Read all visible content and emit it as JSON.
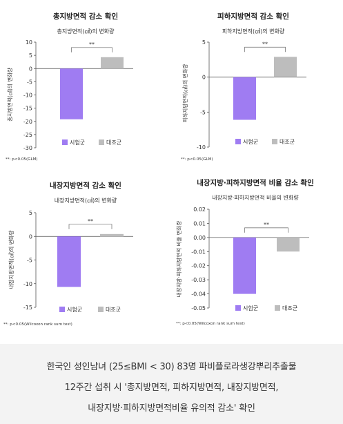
{
  "colors": {
    "test": "#9f7cf2",
    "control": "#bdbdbd",
    "axis": "#555555"
  },
  "chart_data": [
    {
      "type": "bar",
      "title": "총지방면적 감소 확인",
      "subtitle": "총지방면적(㎠)의 변화량",
      "ylabel": "총지방면적(㎠)의 변화량",
      "categories": [
        "시험군",
        "대조군"
      ],
      "values": [
        -19.2,
        4.3
      ],
      "ylim": [
        -30,
        10
      ],
      "yticks": [
        10,
        5,
        0,
        -5,
        -10,
        -15,
        -20,
        -25,
        -30
      ],
      "significance": "**",
      "note": "**: p<0.05(GLM)",
      "legend": [
        "시험군",
        "대조군"
      ]
    },
    {
      "type": "bar",
      "title": "피하지방면적 감소 확인",
      "subtitle": "피하지방면적(㎠)의 변화량",
      "ylabel": "피하지방면적(㎠)의 변화량",
      "categories": [
        "시험군",
        "대조군"
      ],
      "values": [
        -6.1,
        2.9
      ],
      "ylim": [
        -10,
        5
      ],
      "yticks": [
        5,
        0,
        -5,
        -10
      ],
      "significance": "**",
      "note": "**: p<0.05(GLM)",
      "legend": [
        "시험군",
        "대조군"
      ]
    },
    {
      "type": "bar",
      "title": "내장지방면적 감소 확인",
      "subtitle": "내장지방면적(㎠)의 변화량",
      "ylabel": "내장지방면적(㎠)의 변화량",
      "categories": [
        "시험군",
        "대조군"
      ],
      "values": [
        -10.7,
        0.5
      ],
      "ylim": [
        -15,
        5
      ],
      "yticks": [
        5,
        0,
        -5,
        -10,
        -15
      ],
      "significance": "**",
      "note": "**: p<0.05(Wilcoxon rank sum test)",
      "legend": [
        "시험군",
        "대조군"
      ]
    },
    {
      "type": "bar",
      "title": "내장지방·피하지방면적 비율 감소 확인",
      "subtitle": "내장지방·피하지방면적 비율의 변화량",
      "ylabel": "내장지방·피하지방면적 비율 변화량",
      "categories": [
        "시험군",
        "대조군"
      ],
      "values": [
        -0.04,
        -0.01
      ],
      "ylim": [
        -0.05,
        0.02
      ],
      "yticks": [
        0.02,
        0.01,
        0,
        -0.01,
        -0.02,
        -0.03,
        -0.04,
        -0.05
      ],
      "significance": "**",
      "note": "**: p<0.05(Wilcoxon rank sum test)",
      "legend": [
        "시험군",
        "대조군"
      ]
    }
  ],
  "caption": {
    "line1": "한국인 성인남녀 (25≤BMI < 30) 83명 파비플로라생강뿌리추출물",
    "line2": "12주간 섭취 시 '총지방면적, 피하지방면적, 내장지방면적,",
    "line3": "내장지방·피하지방면적비율 유의적 감소' 확인"
  }
}
